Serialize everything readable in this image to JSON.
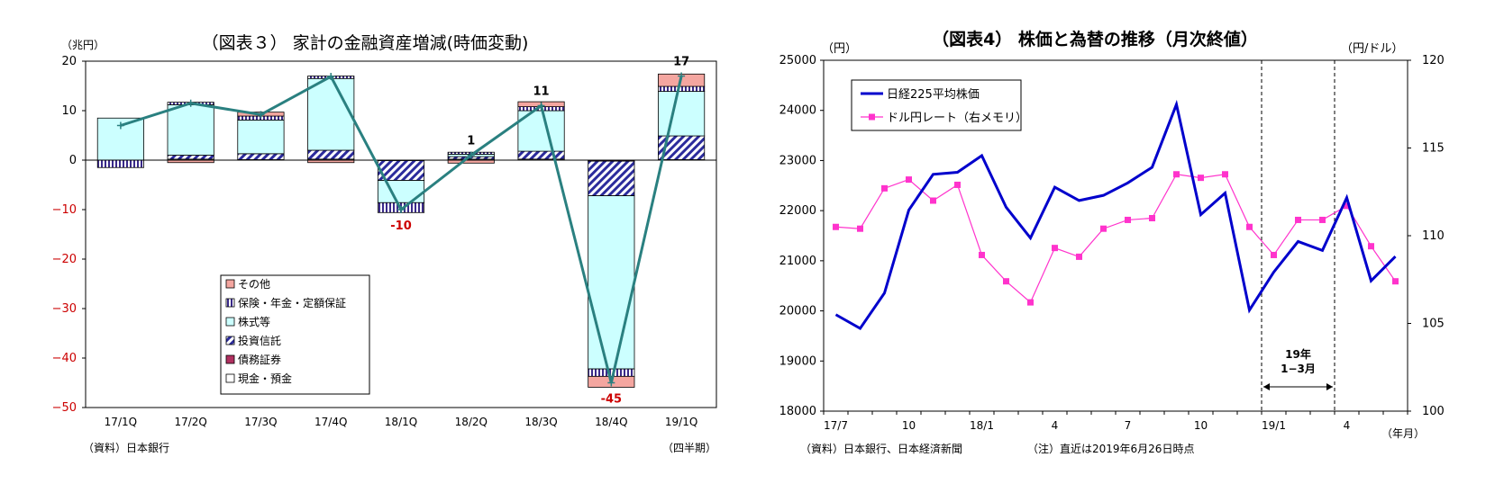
{
  "chart_data": [
    {
      "type": "bar",
      "title": "（図表３） 家計の金融資産増減(時価変動)",
      "ylabel": "（兆円）",
      "xunit": "（四半期）",
      "source": "（資料）日本銀行",
      "ylim": [
        -50,
        20
      ],
      "yticks": [
        "20",
        "10",
        "0",
        "−10",
        "−20",
        "−30",
        "−40",
        "−50"
      ],
      "categories": [
        "17/1Q",
        "17/2Q",
        "17/3Q",
        "17/4Q",
        "18/1Q",
        "18/2Q",
        "18/3Q",
        "18/4Q",
        "19/1Q"
      ],
      "series": [
        {
          "name": "その他",
          "color": "#f4a6a0",
          "values": [
            0,
            -0.5,
            0.8,
            -0.5,
            0,
            -0.6,
            1.0,
            -2.2,
            2.5
          ]
        },
        {
          "name": "保険・年金・定額保証",
          "color": "#9999dd",
          "values": [
            -1.5,
            0.5,
            0.8,
            0.5,
            -2.0,
            0.4,
            0.8,
            -1.5,
            1.0
          ]
        },
        {
          "name": "株式等",
          "color": "#ccffff",
          "values": [
            8.5,
            10.2,
            6.8,
            14.5,
            -4.5,
            0.5,
            8.2,
            -35.0,
            9.0
          ]
        },
        {
          "name": "投資信託",
          "color": "#2b2b9c",
          "values": [
            0,
            0.8,
            1.2,
            1.8,
            -4.0,
            0.5,
            1.6,
            -7.0,
            4.8
          ]
        },
        {
          "name": "債務証券",
          "color": "#b03060",
          "values": [
            0,
            0,
            0,
            0,
            -0.1,
            0,
            0,
            -0.2,
            0
          ]
        },
        {
          "name": "現金・預金",
          "color": "#ffffff",
          "values": [
            0,
            0.2,
            0.1,
            0.2,
            0,
            0.2,
            0.2,
            0,
            0.1
          ]
        }
      ],
      "total": {
        "color": "#2a8080",
        "values": [
          7,
          11.5,
          9.2,
          16.9,
          -10,
          1,
          11,
          -45,
          17
        ]
      },
      "data_labels": [
        {
          "index": 4,
          "text": "-10",
          "color": "#cc0000"
        },
        {
          "index": 5,
          "text": "1",
          "color": "#000000"
        },
        {
          "index": 6,
          "text": "11",
          "color": "#000000"
        },
        {
          "index": 7,
          "text": "-45",
          "color": "#cc0000"
        },
        {
          "index": 8,
          "text": "17",
          "color": "#000000"
        }
      ]
    },
    {
      "type": "line",
      "title": "（図表4） 株価と為替の推移（月次終値）",
      "ylabel_left": "（円）",
      "ylabel_right": "（円/ドル）",
      "xunit": "（年月）",
      "source": "（資料）日本銀行、日本経済新聞",
      "note": "（注）直近は2019年6月26日時点",
      "ylim_left": [
        18000,
        25000
      ],
      "yticks_left": [
        "25000",
        "24000",
        "23000",
        "22000",
        "21000",
        "20000",
        "19000",
        "18000"
      ],
      "ylim_right": [
        100,
        120
      ],
      "yticks_right": [
        "120",
        "115",
        "110",
        "105",
        "100"
      ],
      "xticks": [
        {
          "i": 0,
          "label": "17/7"
        },
        {
          "i": 3,
          "label": "10"
        },
        {
          "i": 6,
          "label": "18/1"
        },
        {
          "i": 9,
          "label": "4"
        },
        {
          "i": 12,
          "label": "7"
        },
        {
          "i": 15,
          "label": "10"
        },
        {
          "i": 18,
          "label": "19/1"
        },
        {
          "i": 21,
          "label": "4"
        }
      ],
      "x": [
        "2017-07",
        "2017-08",
        "2017-09",
        "2017-10",
        "2017-11",
        "2017-12",
        "2018-01",
        "2018-02",
        "2018-03",
        "2018-04",
        "2018-05",
        "2018-06",
        "2018-07",
        "2018-08",
        "2018-09",
        "2018-10",
        "2018-11",
        "2018-12",
        "2019-01",
        "2019-02",
        "2019-03",
        "2019-04",
        "2019-05",
        "2019-06"
      ],
      "series": [
        {
          "name": "日経225平均株価",
          "axis": "left",
          "color": "#0000cc",
          "values": [
            19925,
            19650,
            20356,
            22011,
            22725,
            22765,
            23098,
            22068,
            21454,
            22468,
            22202,
            22305,
            22554,
            22865,
            24120,
            21920,
            22351,
            20015,
            20773,
            21385,
            21206,
            22259,
            20601,
            21087
          ]
        },
        {
          "name": "ドル円レート（右メモリ）",
          "axis": "right",
          "color": "#ff33cc",
          "values": [
            110.5,
            110.4,
            112.7,
            113.2,
            112.0,
            112.9,
            108.9,
            107.4,
            106.2,
            109.3,
            108.8,
            110.4,
            110.9,
            111.0,
            113.5,
            113.3,
            113.5,
            110.5,
            108.9,
            110.9,
            110.9,
            111.7,
            109.4,
            107.4
          ]
        }
      ],
      "annotation": {
        "label_line1": "19年",
        "label_line2": "1−3月",
        "from_index": 18,
        "to_index": 20
      }
    }
  ]
}
